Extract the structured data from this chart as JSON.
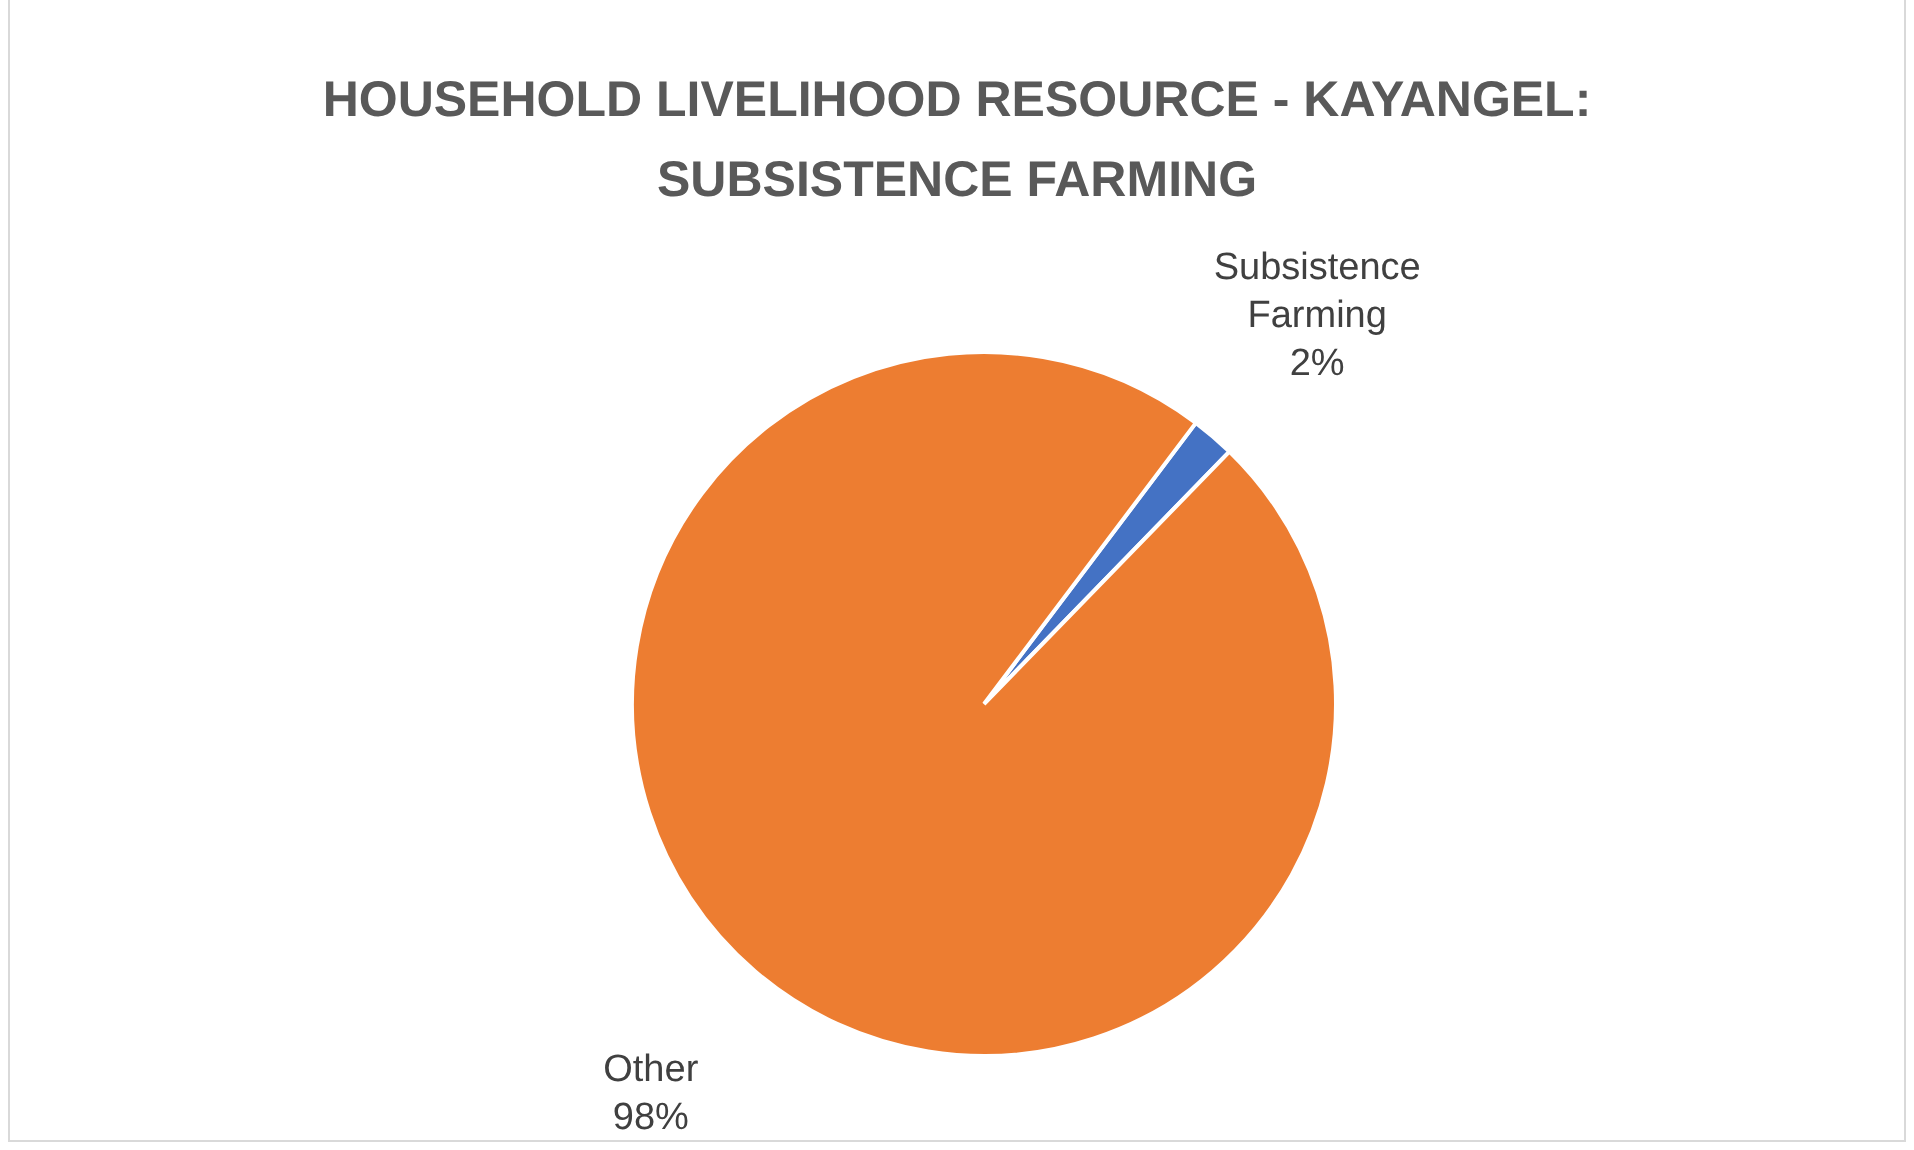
{
  "chart_data": {
    "type": "pie",
    "title": "HOUSEHOLD LIVELIHOOD RESOURCE - KAYANGEL: SUBSISTENCE FARMING",
    "categories": [
      "Subsistence Farming",
      "Other"
    ],
    "values": [
      2,
      98
    ],
    "colors": [
      "#4472c4",
      "#ed7d31"
    ],
    "value_labels": [
      "2%",
      "98%"
    ]
  }
}
